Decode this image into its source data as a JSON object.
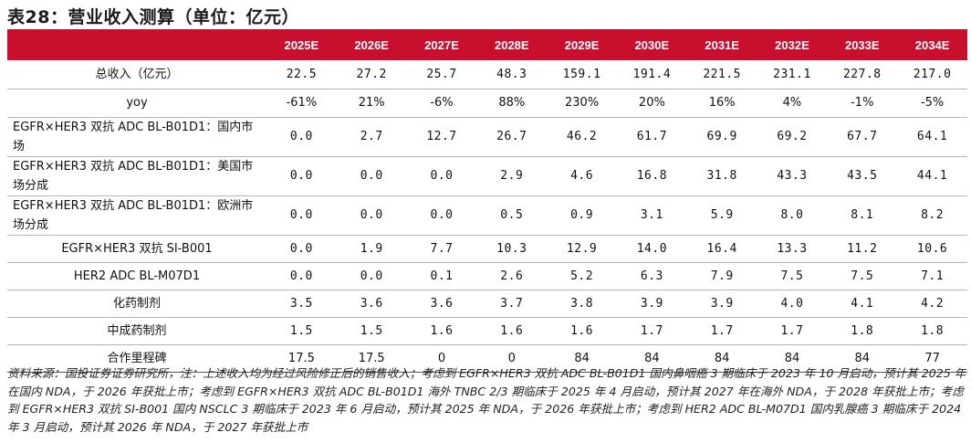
{
  "title": "表28：营业收入测算（单位：亿元）",
  "columns": [
    "2025E",
    "2026E",
    "2027E",
    "2028E",
    "2029E",
    "2030E",
    "2031E",
    "2032E",
    "2033E",
    "2034E"
  ],
  "rows": [
    {
      "label": "总收入（亿元）",
      "values": [
        "22.5",
        "27.2",
        "25.7",
        "48.3",
        "159.1",
        "191.4",
        "221.5",
        "231.1",
        "227.8",
        "217.0"
      ]
    },
    {
      "label": "yoy",
      "values": [
        "-61%",
        "21%",
        "-6%",
        "88%",
        "230%",
        "20%",
        "16%",
        "4%",
        "-1%",
        "-5%"
      ]
    },
    {
      "label": "EGFR×HER3 双抗 ADC BL-B01D1：国内市场",
      "values": [
        "0.0",
        "2.7",
        "12.7",
        "26.7",
        "46.2",
        "61.7",
        "69.9",
        "69.2",
        "67.7",
        "64.1"
      ]
    },
    {
      "label": "EGFR×HER3 双抗 ADC BL-B01D1：美国市场分成",
      "values": [
        "0.0",
        "0.0",
        "0.0",
        "2.9",
        "4.6",
        "16.8",
        "31.8",
        "43.3",
        "43.5",
        "44.1"
      ]
    },
    {
      "label": "EGFR×HER3 双抗 ADC BL-B01D1：欧洲市场分成",
      "values": [
        "0.0",
        "0.0",
        "0.0",
        "0.5",
        "0.9",
        "3.1",
        "5.9",
        "8.0",
        "8.1",
        "8.2"
      ]
    },
    {
      "label": "EGFR×HER3 双抗 SI-B001",
      "values": [
        "0.0",
        "1.9",
        "7.7",
        "10.3",
        "12.9",
        "14.0",
        "16.4",
        "13.3",
        "11.2",
        "10.6"
      ]
    },
    {
      "label": "HER2 ADC BL-M07D1",
      "values": [
        "0.0",
        "0.0",
        "0.1",
        "2.6",
        "5.2",
        "6.3",
        "7.9",
        "7.5",
        "7.5",
        "7.1"
      ]
    },
    {
      "label": "化药制剂",
      "values": [
        "3.5",
        "3.6",
        "3.6",
        "3.7",
        "3.8",
        "3.9",
        "3.9",
        "4.0",
        "4.1",
        "4.2"
      ]
    },
    {
      "label": "中成药制剂",
      "values": [
        "1.5",
        "1.5",
        "1.6",
        "1.6",
        "1.6",
        "1.7",
        "1.7",
        "1.7",
        "1.8",
        "1.8"
      ]
    },
    {
      "label": "合作里程碑",
      "values": [
        "17.5",
        "17.5",
        "0",
        "0",
        "84",
        "84",
        "84",
        "84",
        "84",
        "77"
      ]
    }
  ],
  "footnote": "资料来源：国投证券证券研究所，注：上述收入均为经过风险修正后的销售收入；考虑到 EGFR×HER3 双抗 ADC BL-B01D1 国内鼻咽癌 3 期临床于 2023 年 10 月启动，预计其 2025 年在国内 NDA，于 2026 年获批上市；考虑到 EGFR×HER3 双抗 ADC BL-B01D1 海外 TNBC 2/3 期临床于 2025 年 4 月启动，预计其 2027 年在海外 NDA，于 2028 年获批上市；考虑到 EGFR×HER3 双抗 SI-B001 国内 NSCLC 3 期临床于 2023 年 6 月启动，预计其 2025 年 NDA，于 2026 年获批上市；考虑到 HER2 ADC BL-M07D1 国内乳腺癌 3 期临床于 2024 年 3 月启动，预计其 2026 年 NDA，于 2027 年获批上市",
  "colors": {
    "header_bg": "#c8102e",
    "header_text": "#ffffff",
    "row_border": "#b4b4b4"
  }
}
